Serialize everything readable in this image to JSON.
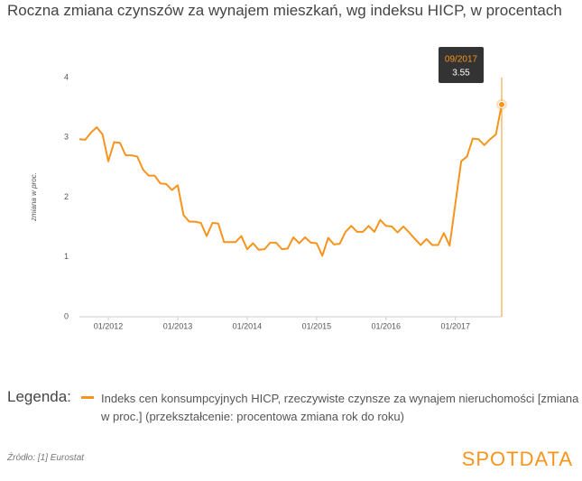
{
  "chart_data": {
    "type": "line",
    "title": "Roczna zmiana czynszów za wynajem mieszkań, wg indeksu HICP, w procentach",
    "y_label": "zmiana w proc.",
    "categories": [
      "08/2011",
      "09/2011",
      "10/2011",
      "11/2011",
      "12/2011",
      "01/2012",
      "02/2012",
      "03/2012",
      "04/2012",
      "05/2012",
      "06/2012",
      "07/2012",
      "08/2012",
      "09/2012",
      "10/2012",
      "11/2012",
      "12/2012",
      "01/2013",
      "02/2013",
      "03/2013",
      "04/2013",
      "05/2013",
      "06/2013",
      "07/2013",
      "08/2013",
      "09/2013",
      "10/2013",
      "11/2013",
      "12/2013",
      "01/2014",
      "02/2014",
      "03/2014",
      "04/2014",
      "05/2014",
      "06/2014",
      "07/2014",
      "08/2014",
      "09/2014",
      "10/2014",
      "11/2014",
      "12/2014",
      "01/2015",
      "02/2015",
      "03/2015",
      "04/2015",
      "05/2015",
      "06/2015",
      "07/2015",
      "08/2015",
      "09/2015",
      "10/2015",
      "11/2015",
      "12/2015",
      "01/2016",
      "02/2016",
      "03/2016",
      "04/2016",
      "05/2016",
      "06/2016",
      "07/2016",
      "08/2016",
      "09/2016",
      "10/2016",
      "11/2016",
      "12/2016",
      "01/2017",
      "02/2017",
      "03/2017",
      "04/2017",
      "05/2017",
      "06/2017",
      "07/2017",
      "08/2017",
      "09/2017"
    ],
    "xticks": [
      "01/2012",
      "01/2013",
      "01/2014",
      "01/2015",
      "01/2016",
      "01/2017"
    ],
    "series": [
      {
        "name": "Indeks cen konsumpcyjnych HICP, rzeczywiste czynsze za wynajem nieruchomości [zmiana w proc.] (przekształcenie: procentowa zmiana rok do roku)",
        "color": "#f7941d",
        "values": [
          2.97,
          2.96,
          3.08,
          3.17,
          3.05,
          2.6,
          2.92,
          2.91,
          2.7,
          2.7,
          2.68,
          2.46,
          2.36,
          2.36,
          2.23,
          2.22,
          2.12,
          2.2,
          1.7,
          1.59,
          1.59,
          1.57,
          1.35,
          1.57,
          1.56,
          1.25,
          1.25,
          1.25,
          1.35,
          1.13,
          1.23,
          1.12,
          1.13,
          1.24,
          1.24,
          1.13,
          1.14,
          1.33,
          1.23,
          1.33,
          1.24,
          1.23,
          1.02,
          1.32,
          1.21,
          1.22,
          1.42,
          1.52,
          1.42,
          1.42,
          1.52,
          1.42,
          1.62,
          1.52,
          1.51,
          1.41,
          1.51,
          1.41,
          1.3,
          1.2,
          1.3,
          1.2,
          1.2,
          1.4,
          1.19,
          1.9,
          2.6,
          2.68,
          2.98,
          2.97,
          2.87,
          2.97,
          3.05,
          3.55
        ]
      }
    ],
    "ylim": [
      0,
      4
    ],
    "yticks": [
      0,
      1,
      2,
      3,
      4
    ],
    "highlight_index": 73,
    "legend_title": "Legenda:",
    "source": "Źródło: [1] Eurostat",
    "logo": "SPOTDATA"
  }
}
